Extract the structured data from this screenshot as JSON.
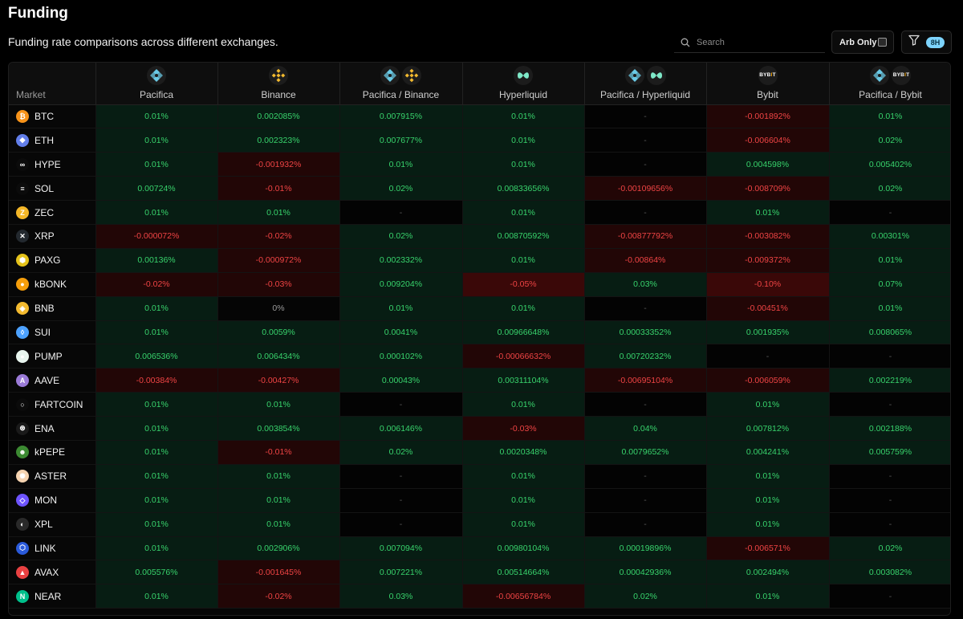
{
  "page": {
    "title": "Funding",
    "subtitle": "Funding rate comparisons across different exchanges."
  },
  "controls": {
    "search_placeholder": "Search",
    "arb_only_label": "Arb Only",
    "interval_badge": "8H"
  },
  "table": {
    "market_header": "Market",
    "columns": [
      {
        "label": "Pacifica",
        "icons": [
          "pacifica"
        ]
      },
      {
        "label": "Binance",
        "icons": [
          "binance"
        ]
      },
      {
        "label": "Pacifica / Binance",
        "icons": [
          "pacifica",
          "binance"
        ]
      },
      {
        "label": "Hyperliquid",
        "icons": [
          "hyperliquid"
        ]
      },
      {
        "label": "Pacifica / Hyperliquid",
        "icons": [
          "pacifica",
          "hyperliquid"
        ]
      },
      {
        "label": "Bybit",
        "icons": [
          "bybit"
        ]
      },
      {
        "label": "Pacifica / Bybit",
        "icons": [
          "pacifica",
          "bybit"
        ]
      }
    ],
    "rows": [
      {
        "market": "BTC",
        "icon_color": "#f7931a",
        "glyph": "₿",
        "values": [
          "0.01%",
          "0.002085%",
          "0.007915%",
          "0.01%",
          "-",
          "-0.001892%",
          "0.01%"
        ]
      },
      {
        "market": "ETH",
        "icon_color": "#627eea",
        "glyph": "◆",
        "values": [
          "0.01%",
          "0.002323%",
          "0.007677%",
          "0.01%",
          "-",
          "-0.006604%",
          "0.02%"
        ]
      },
      {
        "market": "HYPE",
        "icon_color": "#0b0b0b",
        "glyph": "∞",
        "values": [
          "0.01%",
          "-0.001932%",
          "0.01%",
          "0.01%",
          "-",
          "0.004598%",
          "0.005402%"
        ]
      },
      {
        "market": "SOL",
        "icon_color": "#0b0b0b",
        "glyph": "≡",
        "values": [
          "0.00724%",
          "-0.01%",
          "0.02%",
          "0.00833656%",
          "-0.00109656%",
          "-0.008709%",
          "0.02%"
        ]
      },
      {
        "market": "ZEC",
        "icon_color": "#f4b728",
        "glyph": "Z",
        "values": [
          "0.01%",
          "0.01%",
          "-",
          "0.01%",
          "-",
          "0.01%",
          "-"
        ]
      },
      {
        "market": "XRP",
        "icon_color": "#23292f",
        "glyph": "✕",
        "values": [
          "-0.000072%",
          "-0.02%",
          "0.02%",
          "0.00870592%",
          "-0.00877792%",
          "-0.003082%",
          "0.00301%"
        ]
      },
      {
        "market": "PAXG",
        "icon_color": "#e4c21a",
        "glyph": "⬢",
        "values": [
          "0.00136%",
          "-0.000972%",
          "0.002332%",
          "0.01%",
          "-0.00864%",
          "-0.009372%",
          "0.01%"
        ]
      },
      {
        "market": "kBONK",
        "icon_color": "#f59e0b",
        "glyph": "●",
        "values": [
          "-0.02%",
          "-0.03%",
          "0.009204%",
          "-0.05%",
          "0.03%",
          "-0.10%",
          "0.07%"
        ]
      },
      {
        "market": "BNB",
        "icon_color": "#f3ba2f",
        "glyph": "◈",
        "values": [
          "0.01%",
          "0%",
          "0.01%",
          "0.01%",
          "-",
          "-0.00451%",
          "0.01%"
        ]
      },
      {
        "market": "SUI",
        "icon_color": "#4da2ff",
        "glyph": "◊",
        "values": [
          "0.01%",
          "0.0059%",
          "0.0041%",
          "0.00966648%",
          "0.00033352%",
          "0.001935%",
          "0.008065%"
        ]
      },
      {
        "market": "PUMP",
        "icon_color": "#e8f5ee",
        "glyph": "●",
        "values": [
          "0.006536%",
          "0.006434%",
          "0.000102%",
          "-0.00066632%",
          "0.00720232%",
          "-",
          "-"
        ]
      },
      {
        "market": "AAVE",
        "icon_color": "#9b7bd8",
        "glyph": "A",
        "values": [
          "-0.00384%",
          "-0.00427%",
          "0.00043%",
          "0.00311104%",
          "-0.00695104%",
          "-0.006059%",
          "0.002219%"
        ]
      },
      {
        "market": "FARTCOIN",
        "icon_color": "#0b0b0b",
        "glyph": "○",
        "values": [
          "0.01%",
          "0.01%",
          "-",
          "0.01%",
          "-",
          "0.01%",
          "-"
        ]
      },
      {
        "market": "ENA",
        "icon_color": "#1a1a1a",
        "glyph": "⊛",
        "values": [
          "0.01%",
          "0.003854%",
          "0.006146%",
          "-0.03%",
          "0.04%",
          "0.007812%",
          "0.002188%"
        ]
      },
      {
        "market": "kPEPE",
        "icon_color": "#3c8a32",
        "glyph": "☻",
        "values": [
          "0.01%",
          "-0.01%",
          "0.02%",
          "0.0020348%",
          "0.0079652%",
          "0.004241%",
          "0.005759%"
        ]
      },
      {
        "market": "ASTER",
        "icon_color": "#f5d3b0",
        "glyph": "✺",
        "values": [
          "0.01%",
          "0.01%",
          "-",
          "0.01%",
          "-",
          "0.01%",
          "-"
        ]
      },
      {
        "market": "MON",
        "icon_color": "#6e54ff",
        "glyph": "◇",
        "values": [
          "0.01%",
          "0.01%",
          "-",
          "0.01%",
          "-",
          "0.01%",
          "-"
        ]
      },
      {
        "market": "XPL",
        "icon_color": "#2a2a2a",
        "glyph": "◐",
        "values": [
          "0.01%",
          "0.01%",
          "-",
          "0.01%",
          "-",
          "0.01%",
          "-"
        ]
      },
      {
        "market": "LINK",
        "icon_color": "#2a5ada",
        "glyph": "⬡",
        "values": [
          "0.01%",
          "0.002906%",
          "0.007094%",
          "0.00980104%",
          "0.00019896%",
          "-0.006571%",
          "0.02%"
        ]
      },
      {
        "market": "AVAX",
        "icon_color": "#e84142",
        "glyph": "▲",
        "values": [
          "0.005576%",
          "-0.001645%",
          "0.007221%",
          "0.00514664%",
          "0.00042936%",
          "0.002494%",
          "0.003082%"
        ]
      },
      {
        "market": "NEAR",
        "icon_color": "#00c08b",
        "glyph": "N",
        "values": [
          "0.01%",
          "-0.02%",
          "0.03%",
          "-0.00656784%",
          "0.02%",
          "0.01%",
          "-"
        ]
      }
    ]
  },
  "colors": {
    "positive": "#38d36c",
    "negative": "#ef4444",
    "accent": "#7dd3fc"
  }
}
